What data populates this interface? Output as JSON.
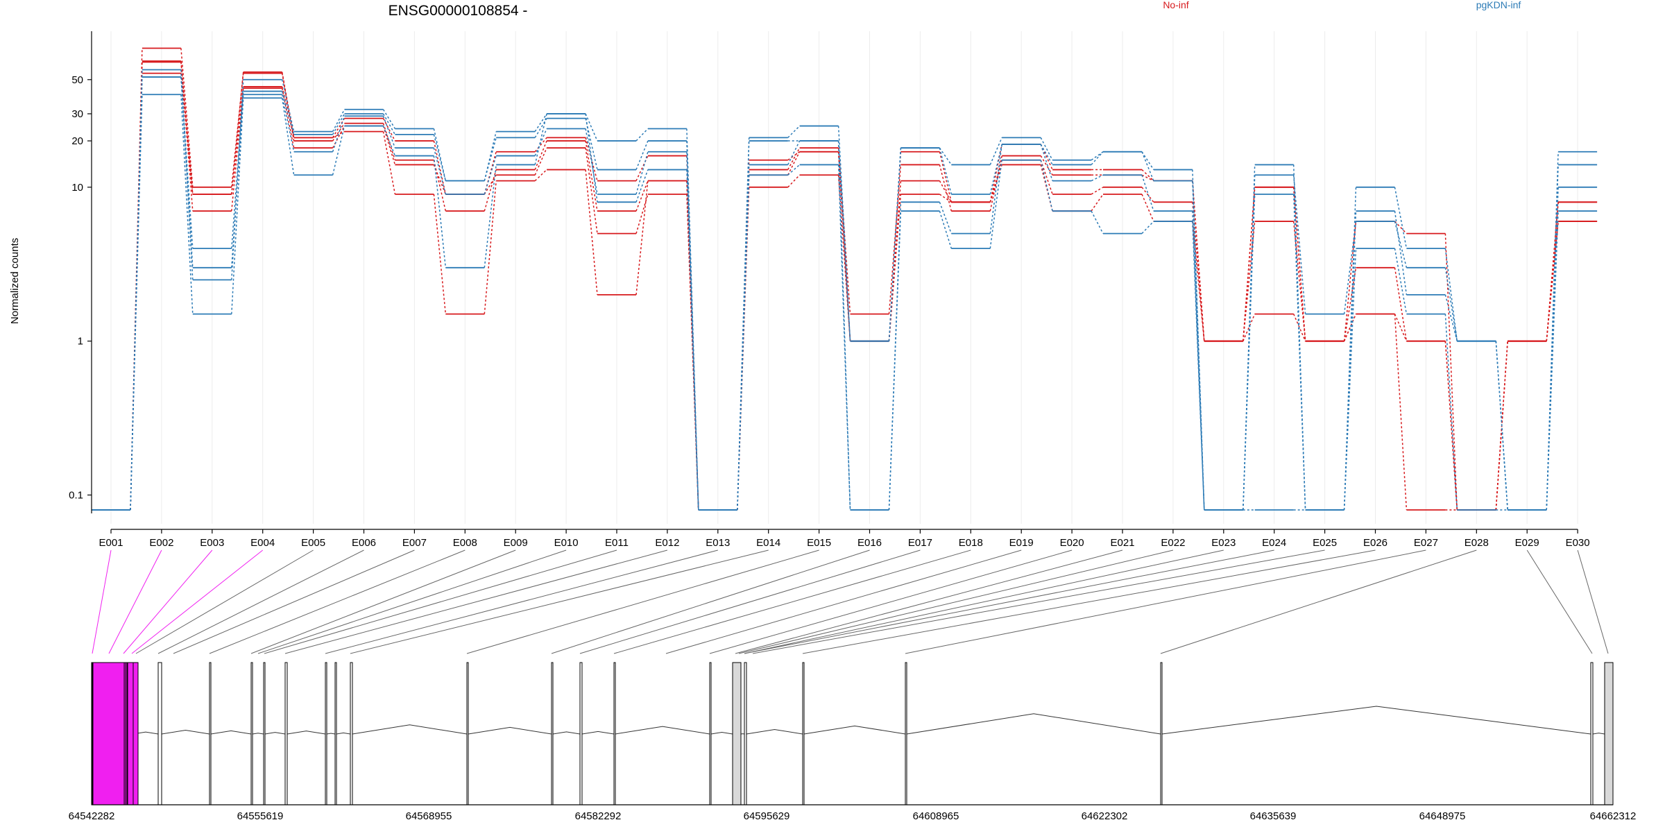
{
  "chart_data": {
    "type": "line",
    "title": "ENSG00000108854 -",
    "xlabel": "",
    "ylabel": "Normalized counts",
    "y_scale": "log",
    "y_ticks": [
      0.1,
      1,
      10,
      20,
      30,
      50
    ],
    "y_tick_labels": [
      "0.1",
      "1",
      "10",
      "20",
      "30",
      "50"
    ],
    "ylim": [
      0.08,
      100
    ],
    "grid": "vertical lines at each exon",
    "legend": [
      {
        "name": "No-inf",
        "color": "#d7191c",
        "position": "top-right"
      },
      {
        "name": "pgKDN-inf",
        "color": "#2c7bb6",
        "position": "top-right"
      }
    ],
    "categories": [
      "E001",
      "E002",
      "E003",
      "E004",
      "E005",
      "E006",
      "E007",
      "E008",
      "E009",
      "E010",
      "E011",
      "E012",
      "E013",
      "E014",
      "E015",
      "E016",
      "E017",
      "E018",
      "E019",
      "E020",
      "E021",
      "E022",
      "E023",
      "E024",
      "E025",
      "E026",
      "E027",
      "E028",
      "E029",
      "E030"
    ],
    "series": [
      {
        "group": "No-inf",
        "color": "#d7191c",
        "values": [
          0.08,
          65,
          9,
          56,
          21,
          28,
          20,
          9,
          17,
          21,
          11,
          16,
          0.08,
          15,
          17,
          1,
          17,
          8,
          19,
          13,
          13,
          11,
          1,
          10,
          1,
          6,
          5,
          0.08,
          1,
          8
        ]
      },
      {
        "group": "No-inf",
        "color": "#d7191c",
        "values": [
          0.08,
          80,
          10,
          55,
          20,
          26,
          15,
          7,
          13,
          20,
          7,
          11,
          0.08,
          13,
          18,
          1.5,
          14,
          7,
          16,
          12,
          12,
          11,
          1,
          10,
          1,
          1.5,
          1,
          0.08,
          1,
          6
        ]
      },
      {
        "group": "No-inf",
        "color": "#d7191c",
        "values": [
          0.08,
          66,
          7,
          44,
          18,
          25,
          14,
          9,
          12,
          18,
          5,
          9,
          0.08,
          12,
          17,
          1,
          9,
          8,
          15,
          9,
          10,
          8,
          1,
          6,
          1,
          3,
          1,
          0.08,
          1,
          8
        ]
      },
      {
        "group": "No-inf",
        "color": "#d7191c",
        "values": [
          0.08,
          55,
          9,
          45,
          21,
          23,
          9,
          1.5,
          11,
          13,
          2,
          11,
          0.08,
          10,
          12,
          1,
          11,
          8,
          14,
          7,
          9,
          6,
          1,
          1.5,
          1,
          1.5,
          0.08,
          0.08,
          1,
          6
        ]
      },
      {
        "group": "pgKDN-inf",
        "color": "#2c7bb6",
        "values": [
          0.08,
          58,
          2.5,
          50,
          23,
          32,
          24,
          11,
          23,
          30,
          20,
          24,
          0.08,
          21,
          25,
          1,
          18,
          14,
          21,
          15,
          17,
          13,
          0.08,
          14,
          0.08,
          10,
          4,
          1,
          0.08,
          17
        ]
      },
      {
        "group": "pgKDN-inf",
        "color": "#2c7bb6",
        "values": [
          0.08,
          52,
          4,
          42,
          22,
          30,
          22,
          11,
          21,
          28,
          13,
          20,
          0.08,
          20,
          20,
          1,
          18,
          9,
          19,
          14,
          17,
          11,
          0.08,
          12,
          1.5,
          6,
          3,
          1,
          0.08,
          14
        ]
      },
      {
        "group": "pgKDN-inf",
        "color": "#2c7bb6",
        "values": [
          0.08,
          52,
          3,
          40,
          17,
          29,
          18,
          9,
          16,
          24,
          9,
          17,
          0.08,
          14,
          20,
          0.08,
          8,
          5,
          19,
          11,
          12,
          7,
          0.08,
          9,
          0.08,
          7,
          2,
          1,
          0.08,
          10
        ]
      },
      {
        "group": "pgKDN-inf",
        "color": "#2c7bb6",
        "values": [
          0.08,
          40,
          1.5,
          38,
          12,
          25,
          16,
          3,
          14,
          30,
          8,
          13,
          0.08,
          12,
          14,
          0.08,
          7,
          4,
          15,
          7,
          5,
          6,
          0.08,
          0.08,
          0.08,
          4,
          1.5,
          0.08,
          0.08,
          7
        ]
      }
    ],
    "gene_model": {
      "coordinate_ticks": [
        "64542282",
        "64555619",
        "64568955",
        "64582292",
        "64595629",
        "64608965",
        "64622302",
        "64635639",
        "64648975",
        "64662312"
      ],
      "highlighted_exons": [
        "E001",
        "E002",
        "E003",
        "E004"
      ],
      "highlight_color": "#f01ff0",
      "shaded_exons": [
        "E014",
        "E030"
      ]
    }
  }
}
